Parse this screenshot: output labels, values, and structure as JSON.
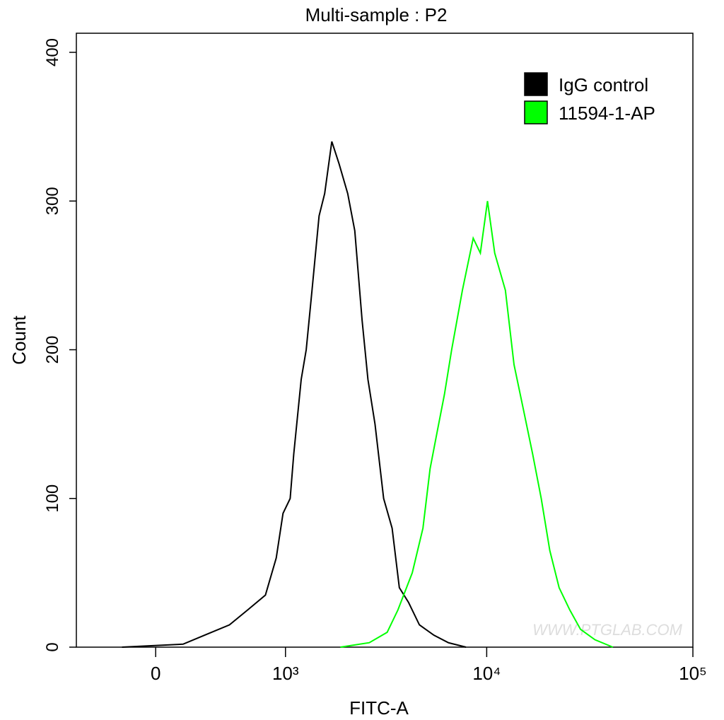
{
  "chart_data": {
    "type": "line",
    "title": "Multi-sample : P2",
    "x_label": "FITC-A",
    "y_label": "Count",
    "x_scale": "arcsinh",
    "xlim": [
      -500,
      100000
    ],
    "xticks": [
      0,
      {
        "value": 1000,
        "label": "10³"
      },
      {
        "value": 10000,
        "label": "10⁴"
      },
      {
        "value": 100000,
        "label": "10⁵"
      }
    ],
    "ylim": [
      0,
      400
    ],
    "yticks": [
      0,
      100,
      200,
      300,
      400
    ],
    "legend": "upper right",
    "watermark": "WWW.PTGLAB.COM",
    "series": [
      {
        "name": "IgG control",
        "color": "#000000",
        "x": [
          -191,
          154,
          284,
          457,
          605,
          773,
          890,
          970,
          1060,
          1108,
          1212,
          1288,
          1380,
          1500,
          1602,
          1741,
          1894,
          2091,
          2268,
          2465,
          2634,
          2853,
          3146,
          3464,
          3757,
          4170,
          4707,
          5542,
          6511,
          7932
        ],
        "values": [
          0,
          2,
          8,
          15,
          25,
          35,
          60,
          90,
          100,
          130,
          180,
          200,
          240,
          290,
          305,
          340,
          325,
          305,
          280,
          220,
          180,
          150,
          100,
          80,
          40,
          30,
          15,
          8,
          3,
          0
        ]
      },
      {
        "name": "11594-1-AP",
        "color": "#00ff00",
        "x": [
          1923,
          2674,
          3275,
          3698,
          4344,
          4900,
          5308,
          5750,
          6232,
          6759,
          7619,
          8598,
          9314,
          10089,
          10934,
          12326,
          13568,
          15059,
          16699,
          18389,
          20228,
          22464,
          25297,
          28528,
          33498,
          40903
        ],
        "values": [
          0,
          3,
          10,
          25,
          50,
          80,
          120,
          145,
          170,
          200,
          240,
          275,
          265,
          300,
          265,
          240,
          190,
          160,
          130,
          100,
          65,
          40,
          25,
          12,
          5,
          0
        ]
      }
    ]
  }
}
